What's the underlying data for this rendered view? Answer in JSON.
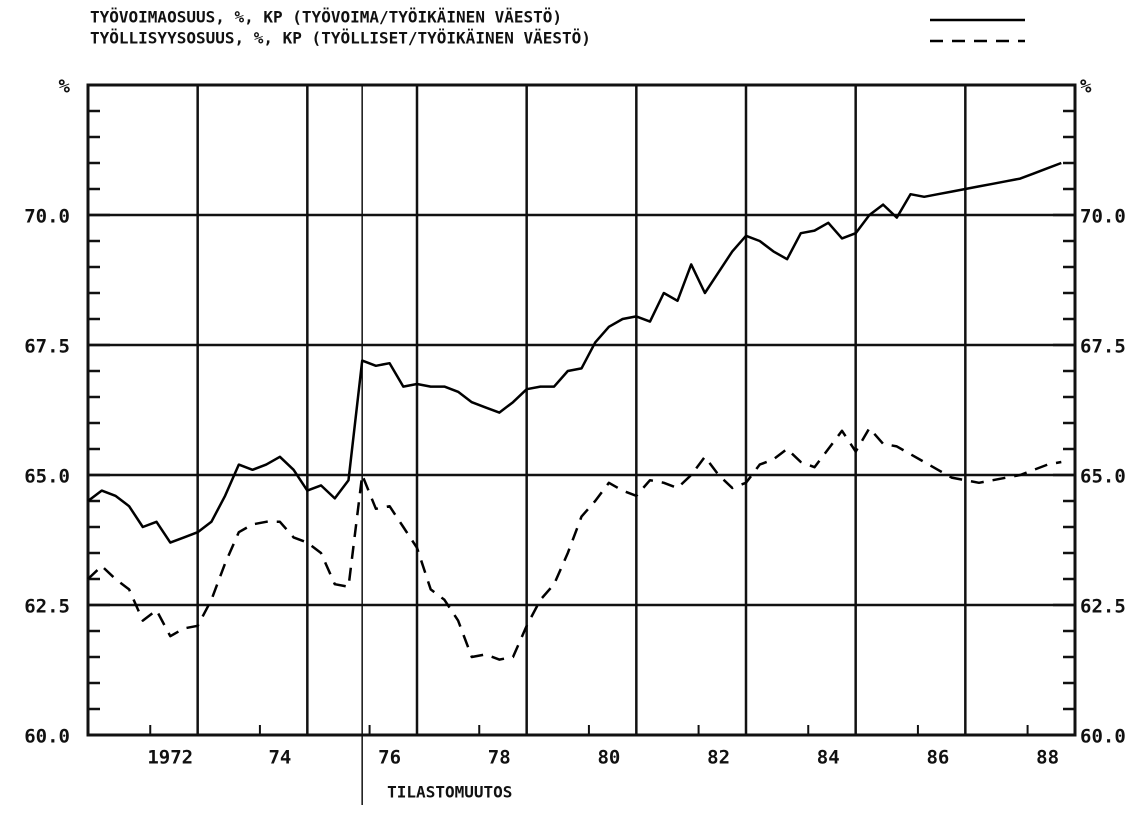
{
  "chart_data": {
    "type": "line",
    "ylabel": "%",
    "xlim": [
      1971,
      1989
    ],
    "ylim": [
      60,
      72.5
    ],
    "yticks": [
      {
        "value": 60,
        "label": "60.0"
      },
      62.5,
      {
        "value": 65,
        "label": "65.0"
      },
      67.5,
      {
        "value": 70,
        "label": "70.0"
      }
    ],
    "yminorticks": [
      60.5,
      61,
      61.5,
      62,
      63,
      63.5,
      64,
      64.5,
      65.5,
      66,
      66.5,
      67,
      68,
      68.5,
      69,
      69.5,
      70.5,
      71,
      71.5,
      72
    ],
    "xticks": [
      {
        "value": 1972.5,
        "label": "1972"
      },
      {
        "value": 1974.5,
        "label": "74"
      },
      {
        "value": 1976.5,
        "label": "76"
      },
      {
        "value": 1978.5,
        "label": "78"
      },
      {
        "value": 1980.5,
        "label": "80"
      },
      {
        "value": 1982.5,
        "label": "82"
      },
      {
        "value": 1984.5,
        "label": "84"
      },
      {
        "value": 1986.5,
        "label": "86"
      },
      {
        "value": 1988.5,
        "label": "88"
      }
    ],
    "xgrid": [
      1973,
      1975,
      1977,
      1979,
      1981,
      1983,
      1985,
      1987
    ],
    "grid": true,
    "annotation": {
      "x": 1976,
      "text": "TILASTOMUUTOS"
    },
    "x": [
      1971,
      1971.25,
      1971.5,
      1971.75,
      1972,
      1972.25,
      1972.5,
      1972.75,
      1973,
      1973.25,
      1973.5,
      1973.75,
      1974,
      1974.25,
      1974.5,
      1974.75,
      1975,
      1975.25,
      1975.5,
      1975.75,
      1976,
      1976.25,
      1976.5,
      1976.75,
      1977,
      1977.25,
      1977.5,
      1977.75,
      1978,
      1978.25,
      1978.5,
      1978.75,
      1979,
      1979.25,
      1979.5,
      1979.75,
      1980,
      1980.25,
      1980.5,
      1980.75,
      1981,
      1981.25,
      1981.5,
      1981.75,
      1982,
      1982.25,
      1982.5,
      1982.75,
      1983,
      1983.25,
      1983.5,
      1983.75,
      1984,
      1984.25,
      1984.5,
      1984.75,
      1985,
      1985.25,
      1985.5,
      1985.75,
      1986,
      1986.25,
      1986.5,
      1986.75,
      1987,
      1987.25,
      1987.5,
      1987.75,
      1988,
      1988.25,
      1988.5,
      1988.75
    ],
    "series": [
      {
        "name": "TYÖVOIMAOSUUS, %, KP (TYÖVOIMA/TYÖIKÄINEN VÄESTÖ)",
        "color": "#000000",
        "style": "solid",
        "values": [
          64.5,
          64.7,
          64.6,
          64.4,
          64.0,
          64.1,
          63.7,
          63.8,
          63.9,
          64.1,
          64.6,
          65.2,
          65.1,
          65.2,
          65.35,
          65.1,
          64.7,
          64.8,
          64.55,
          64.9,
          67.2,
          67.1,
          67.15,
          66.7,
          66.75,
          66.7,
          66.7,
          66.6,
          66.4,
          66.3,
          66.2,
          66.4,
          66.65,
          66.7,
          66.7,
          67.0,
          67.05,
          67.55,
          67.85,
          68.0,
          68.05,
          67.95,
          68.5,
          68.35,
          69.05,
          68.5,
          68.9,
          69.3,
          69.6,
          69.5,
          69.3,
          69.15,
          69.65,
          69.7,
          69.85,
          69.55,
          69.65,
          70.0,
          70.2,
          69.95,
          70.4,
          70.35,
          70.4,
          70.45,
          70.5,
          70.55,
          70.6,
          70.65,
          70.7,
          70.8,
          70.9,
          71.0
        ]
      },
      {
        "name": "TYÖLLISYYSOSUUS, %, KP (TYÖLLISET/TYÖIKÄINEN VÄESTÖ)",
        "color": "#000000",
        "style": "dashed",
        "values": [
          63.0,
          63.25,
          63.0,
          62.8,
          62.2,
          62.4,
          61.9,
          62.05,
          62.1,
          62.6,
          63.3,
          63.9,
          64.05,
          64.1,
          64.1,
          63.8,
          63.7,
          63.5,
          62.9,
          62.85,
          65.0,
          64.35,
          64.4,
          64.0,
          63.6,
          62.8,
          62.6,
          62.2,
          61.5,
          61.55,
          61.45,
          61.5,
          62.1,
          62.6,
          62.9,
          63.5,
          64.2,
          64.5,
          64.85,
          64.7,
          64.6,
          64.9,
          64.85,
          64.75,
          65.0,
          65.35,
          65.0,
          64.75,
          64.85,
          65.2,
          65.3,
          65.5,
          65.25,
          65.15,
          65.5,
          65.85,
          65.45,
          65.9,
          65.6,
          65.55,
          65.4,
          65.25,
          65.1,
          64.95,
          64.9,
          64.85,
          64.9,
          64.95,
          65.0,
          65.1,
          65.2,
          65.25
        ]
      }
    ]
  }
}
